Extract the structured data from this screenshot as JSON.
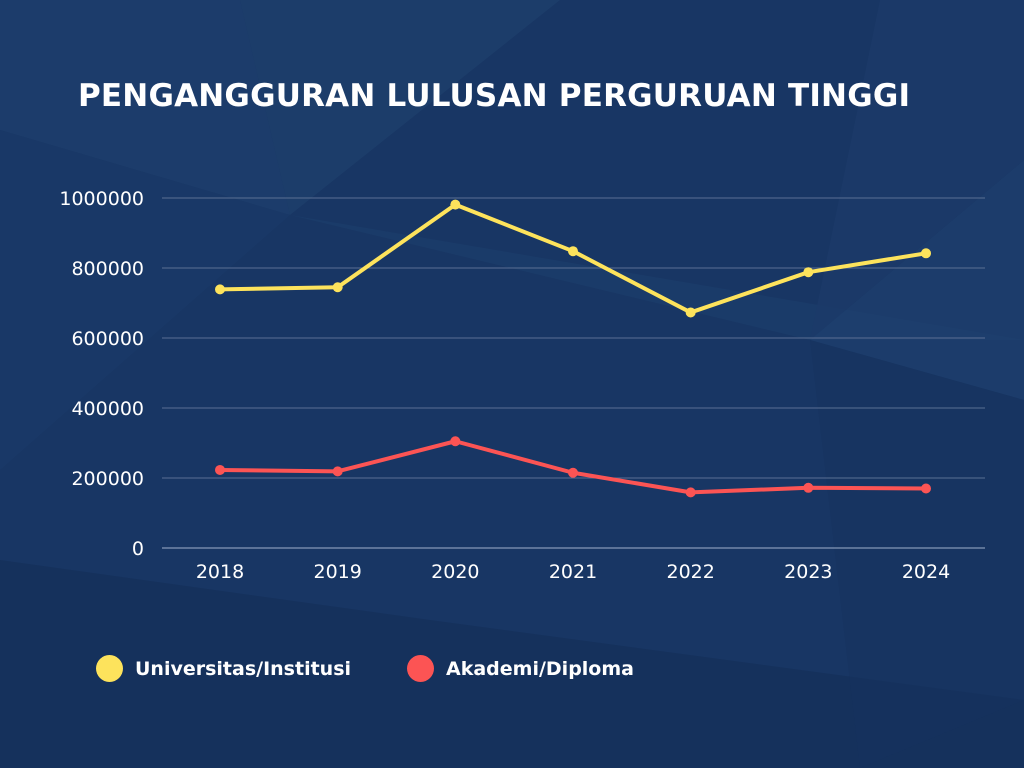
{
  "colors": {
    "background": "#183664",
    "grid": "#5a6f93",
    "axis": "#9fb0cc",
    "text": "#ffffff"
  },
  "chart_data": {
    "type": "line",
    "title": "PENGANGGURAN LULUSAN PERGURUAN TINGGI",
    "xlabel": "",
    "ylabel": "",
    "categories": [
      "2018",
      "2019",
      "2020",
      "2021",
      "2022",
      "2023",
      "2024"
    ],
    "ylim": [
      0,
      1000000
    ],
    "yticks": [
      "0",
      "200000",
      "400000",
      "600000",
      "800000",
      "1000000"
    ],
    "grid": true,
    "legend_position": "bottom-left",
    "series": [
      {
        "name": "Universitas/Institusi",
        "color": "#fde35c",
        "values": [
          739000,
          745000,
          981000,
          848000,
          673000,
          788000,
          842000
        ]
      },
      {
        "name": "Akademi/Diploma",
        "color": "#fc5454",
        "values": [
          223000,
          219000,
          305000,
          215000,
          159000,
          172000,
          170000
        ]
      }
    ]
  }
}
